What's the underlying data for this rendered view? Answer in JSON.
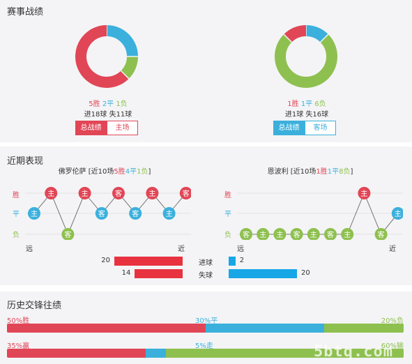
{
  "record": {
    "title": "赛事战绩",
    "home": {
      "win": "5胜",
      "draw": "2平",
      "loss": "1负",
      "goals": "进18球 失11球",
      "tab_total": "总战绩",
      "tab_venue": "主场",
      "donut": {
        "win": 5,
        "draw": 2,
        "loss": 1
      }
    },
    "away": {
      "win": "1胜",
      "draw": "1平",
      "loss": "6负",
      "goals": "进1球 失16球",
      "tab_total": "总战绩",
      "tab_venue": "客场",
      "donut": {
        "win": 1,
        "draw": 1,
        "loss": 6
      }
    }
  },
  "recent": {
    "title": "近期表现",
    "home": {
      "name_prefix": "佛罗伦萨 [近10场",
      "win": "5胜",
      "draw": "4平",
      "loss": "1负",
      "suffix": "]",
      "results": [
        {
          "r": "平",
          "side": "主"
        },
        {
          "r": "胜",
          "side": "主"
        },
        {
          "r": "负",
          "side": "客"
        },
        {
          "r": "胜",
          "side": "主"
        },
        {
          "r": "平",
          "side": "客"
        },
        {
          "r": "胜",
          "side": "客"
        },
        {
          "r": "平",
          "side": "客"
        },
        {
          "r": "胜",
          "side": "主"
        },
        {
          "r": "平",
          "side": "主"
        },
        {
          "r": "胜",
          "side": "客"
        }
      ]
    },
    "away": {
      "name_prefix": "恩波利 [近10场",
      "win": "1胜",
      "draw": "1平",
      "loss": "8负",
      "suffix": "]",
      "results": [
        {
          "r": "负",
          "side": "客"
        },
        {
          "r": "负",
          "side": "主"
        },
        {
          "r": "负",
          "side": "主"
        },
        {
          "r": "负",
          "side": "客"
        },
        {
          "r": "负",
          "side": "主"
        },
        {
          "r": "负",
          "side": "客"
        },
        {
          "r": "负",
          "side": "主"
        },
        {
          "r": "胜",
          "side": "主"
        },
        {
          "r": "负",
          "side": "客"
        },
        {
          "r": "平",
          "side": "主"
        }
      ]
    },
    "axis": {
      "win": "胜",
      "draw": "平",
      "loss": "负",
      "far": "远",
      "near": "近"
    },
    "goals": {
      "scored_label": "进球",
      "conceded_label": "失球",
      "home_scored": 20,
      "home_conceded": 14,
      "away_scored": 2,
      "away_conceded": 20
    }
  },
  "h2h": {
    "title": "历史交锋往绩",
    "row1": {
      "win": "50%胜",
      "draw": "30%平",
      "loss": "20%负",
      "win_pct": 50,
      "draw_pct": 30,
      "loss_pct": 20
    },
    "row2": {
      "win": "35%赢",
      "draw": "5%走",
      "loss": "60%输",
      "win_pct": 35,
      "draw_pct": 5,
      "loss_pct": 60
    }
  },
  "watermark": "5btq.com",
  "colors": {
    "win": "#e14656",
    "draw": "#3bb0dc",
    "loss": "#8ec04f",
    "home_bar": "#e8323f",
    "away_bar": "#17a7e6"
  }
}
